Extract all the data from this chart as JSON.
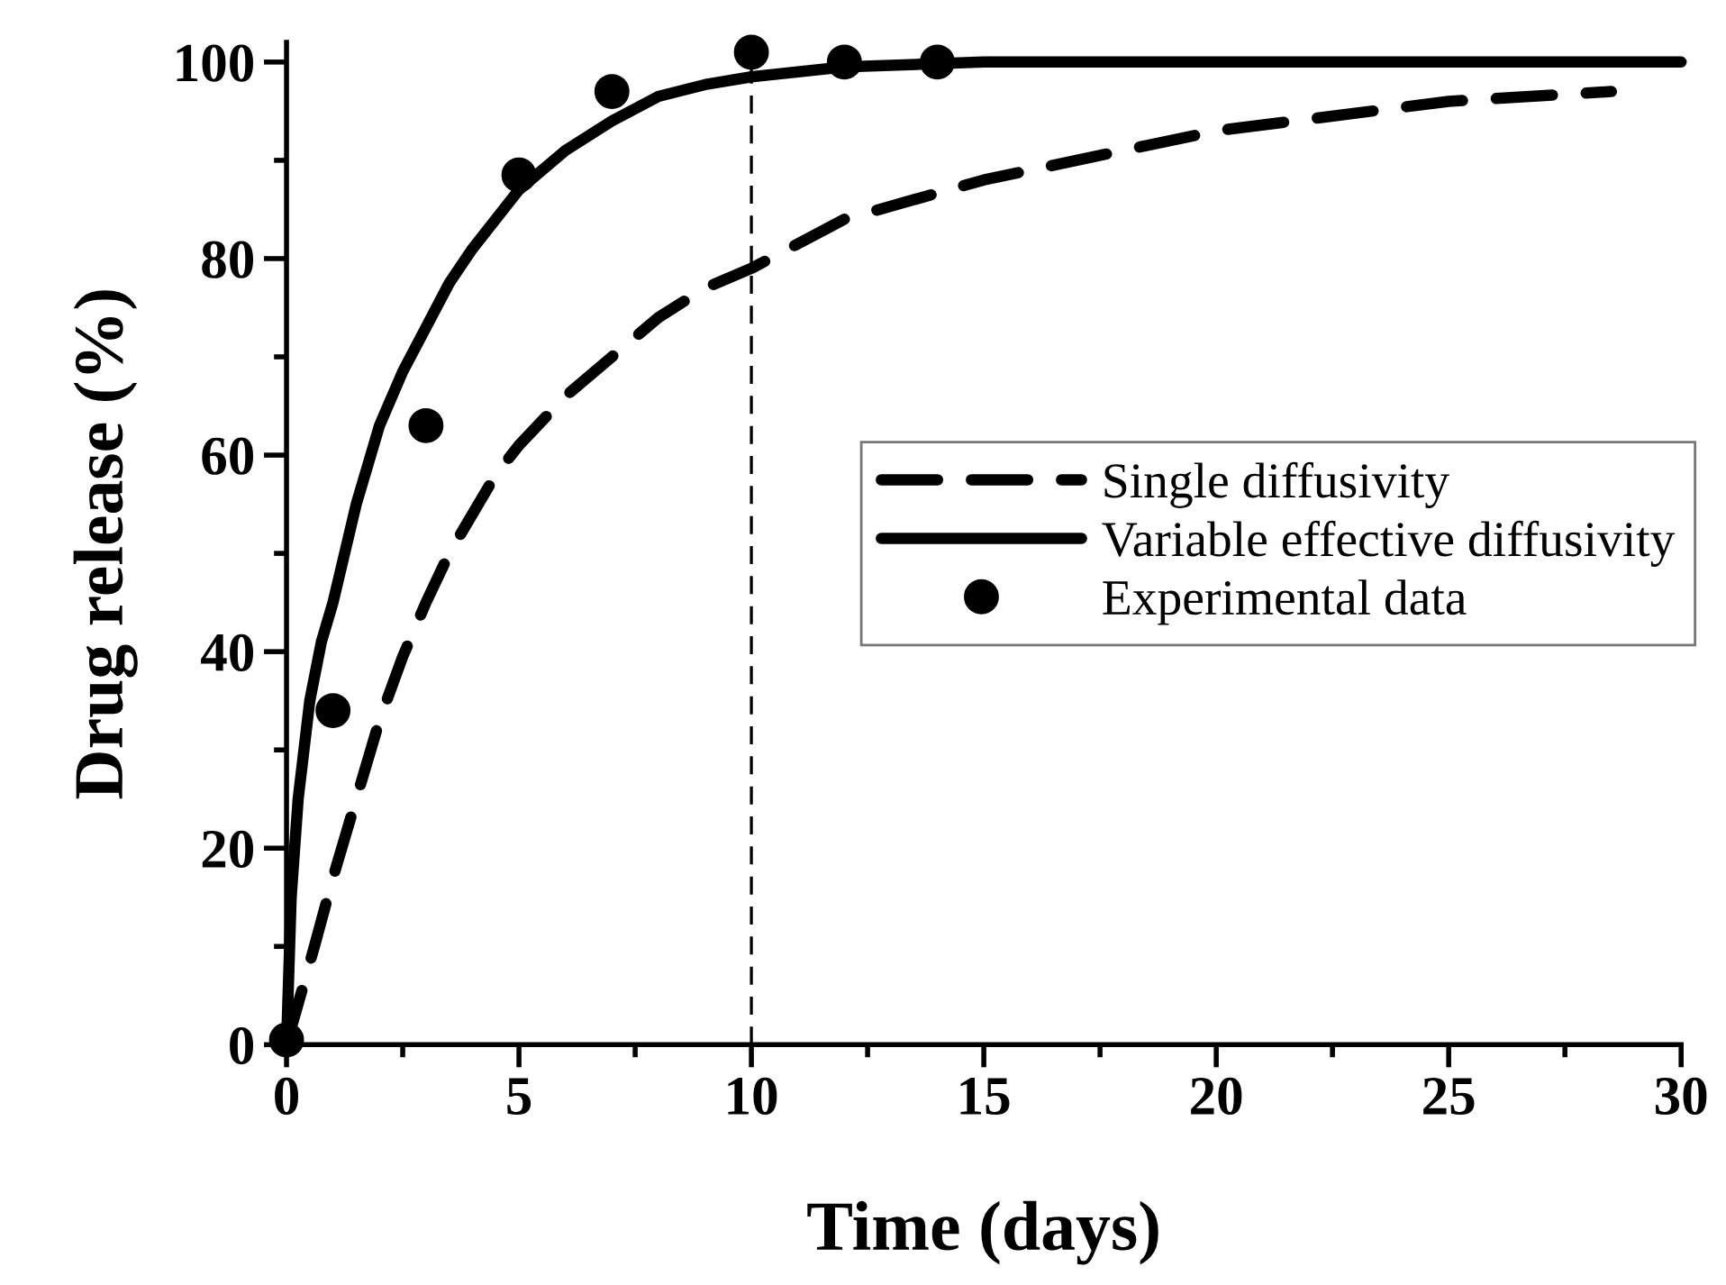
{
  "chart_data": {
    "type": "line",
    "xlabel": "Time (days)",
    "ylabel": "Drug release (%)",
    "xlim": [
      0,
      30
    ],
    "ylim": [
      0,
      102
    ],
    "xticks": [
      0,
      5,
      10,
      15,
      20,
      25,
      30
    ],
    "yticks": [
      0,
      20,
      40,
      60,
      80,
      100
    ],
    "grid": false,
    "legend": "center right",
    "ref_lines": [
      {
        "axis": "x",
        "value": 10,
        "color": "#000000",
        "line_style": "dashed"
      }
    ],
    "series": [
      {
        "name": "Single diffusivity",
        "type": "line",
        "color": "#000000",
        "line_style": "dashed",
        "marker": "none",
        "x": [
          0,
          0.3,
          0.6,
          1,
          1.5,
          2,
          2.5,
          3,
          3.5,
          4,
          4.5,
          5,
          6,
          7,
          8,
          9,
          10,
          12,
          15,
          20,
          25,
          28.5
        ],
        "values": [
          0,
          5,
          10,
          17,
          25,
          33,
          39.5,
          45,
          50,
          54,
          58,
          61,
          66,
          70,
          74,
          77,
          79,
          84,
          88,
          93,
          96,
          97
        ]
      },
      {
        "name": "Variable effective diffusivity",
        "type": "line",
        "color": "#000000",
        "line_style": "solid",
        "marker": "none",
        "x": [
          0,
          0.1,
          0.25,
          0.5,
          0.75,
          1,
          1.5,
          2,
          2.5,
          3,
          3.5,
          4,
          4.5,
          5,
          6,
          7,
          8,
          9,
          10,
          12,
          15,
          20,
          30
        ],
        "values": [
          0,
          15,
          25,
          35,
          41,
          45,
          55,
          63,
          68.5,
          73,
          77.5,
          81,
          84,
          87,
          91,
          94,
          96.5,
          97.7,
          98.5,
          99.5,
          100,
          100,
          100
        ]
      },
      {
        "name": "Experimental data",
        "type": "scatter",
        "color": "#000000",
        "marker": "circle",
        "x": [
          0,
          1,
          3,
          5,
          7,
          10,
          12,
          14
        ],
        "values": [
          0.5,
          34,
          63,
          88.5,
          97,
          101,
          100,
          100
        ]
      }
    ]
  }
}
